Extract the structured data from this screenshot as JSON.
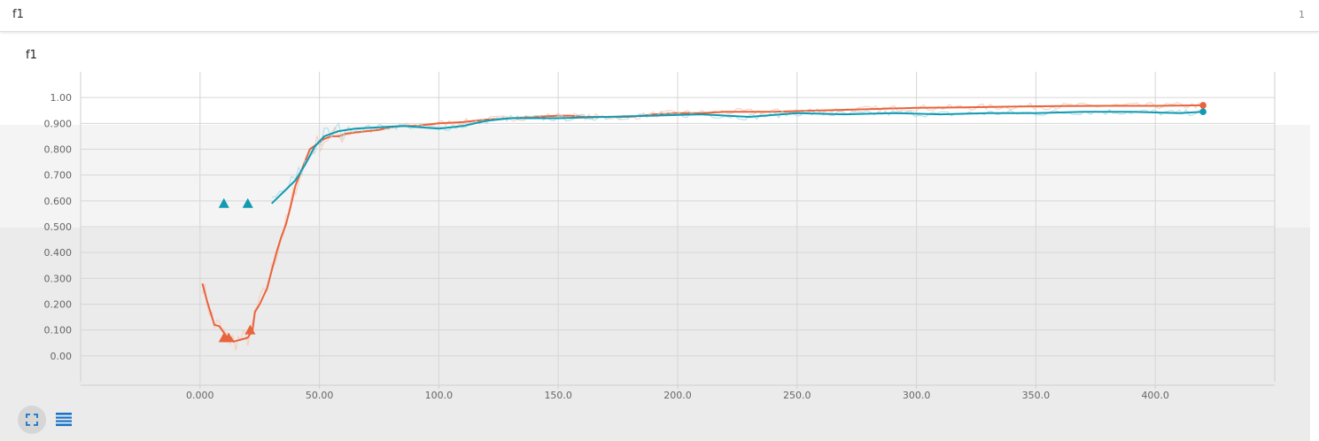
{
  "header": {
    "title": "f1",
    "count": "1"
  },
  "chart_data": {
    "type": "line",
    "title": "f1",
    "xlabel": "",
    "ylabel": "",
    "xlim": [
      -50,
      450
    ],
    "ylim": [
      -0.1,
      1.1
    ],
    "x_ticks": [
      "0.000",
      "50.00",
      "100.0",
      "150.0",
      "200.0",
      "250.0",
      "300.0",
      "350.0",
      "400.0"
    ],
    "y_ticks": [
      "0.00",
      "0.100",
      "0.200",
      "0.300",
      "0.400",
      "0.500",
      "0.600",
      "0.700",
      "0.800",
      "0.900",
      "1.00"
    ],
    "grid": true,
    "legend": "none",
    "series": [
      {
        "color": "#e8643c",
        "raw_color": "#f5c8b8",
        "points": [
          [
            1,
            0.28
          ],
          [
            3,
            0.21
          ],
          [
            5,
            0.15
          ],
          [
            6,
            0.12
          ],
          [
            8,
            0.115
          ],
          [
            10,
            0.09
          ],
          [
            12,
            0.06
          ],
          [
            13,
            0.07
          ],
          [
            14,
            0.055
          ],
          [
            16,
            0.06
          ],
          [
            18,
            0.065
          ],
          [
            20,
            0.07
          ],
          [
            22,
            0.1
          ],
          [
            23,
            0.17
          ],
          [
            25,
            0.2
          ],
          [
            28,
            0.26
          ],
          [
            30,
            0.33
          ],
          [
            32,
            0.4
          ],
          [
            34,
            0.46
          ],
          [
            36,
            0.51
          ],
          [
            38,
            0.58
          ],
          [
            40,
            0.66
          ],
          [
            43,
            0.73
          ],
          [
            46,
            0.8
          ],
          [
            49,
            0.82
          ],
          [
            52,
            0.84
          ],
          [
            55,
            0.85
          ],
          [
            58,
            0.85
          ],
          [
            61,
            0.86
          ],
          [
            65,
            0.865
          ],
          [
            70,
            0.87
          ],
          [
            75,
            0.875
          ],
          [
            80,
            0.885
          ],
          [
            85,
            0.89
          ],
          [
            90,
            0.89
          ],
          [
            95,
            0.895
          ],
          [
            100,
            0.9
          ],
          [
            110,
            0.905
          ],
          [
            120,
            0.915
          ],
          [
            130,
            0.92
          ],
          [
            140,
            0.925
          ],
          [
            150,
            0.93
          ],
          [
            155,
            0.93
          ],
          [
            160,
            0.925
          ],
          [
            170,
            0.925
          ],
          [
            180,
            0.925
          ],
          [
            190,
            0.935
          ],
          [
            200,
            0.94
          ],
          [
            210,
            0.94
          ],
          [
            220,
            0.945
          ],
          [
            240,
            0.945
          ],
          [
            260,
            0.95
          ],
          [
            280,
            0.955
          ],
          [
            300,
            0.96
          ],
          [
            320,
            0.962
          ],
          [
            340,
            0.965
          ],
          [
            360,
            0.967
          ],
          [
            380,
            0.968
          ],
          [
            400,
            0.968
          ],
          [
            420,
            0.97
          ]
        ],
        "markers": [
          [
            10,
            0.07
          ],
          [
            12,
            0.07
          ],
          [
            21,
            0.1
          ]
        ],
        "end": [
          420,
          0.97
        ]
      },
      {
        "color": "#119ab2",
        "raw_color": "#a6dce4",
        "points": [
          [
            30,
            0.59
          ],
          [
            35,
            0.635
          ],
          [
            40,
            0.68
          ],
          [
            44,
            0.74
          ],
          [
            48,
            0.81
          ],
          [
            52,
            0.85
          ],
          [
            58,
            0.87
          ],
          [
            65,
            0.88
          ],
          [
            75,
            0.885
          ],
          [
            85,
            0.89
          ],
          [
            100,
            0.88
          ],
          [
            110,
            0.89
          ],
          [
            120,
            0.91
          ],
          [
            130,
            0.92
          ],
          [
            150,
            0.92
          ],
          [
            170,
            0.925
          ],
          [
            190,
            0.93
          ],
          [
            210,
            0.935
          ],
          [
            230,
            0.925
          ],
          [
            250,
            0.94
          ],
          [
            270,
            0.935
          ],
          [
            290,
            0.94
          ],
          [
            310,
            0.935
          ],
          [
            330,
            0.94
          ],
          [
            350,
            0.94
          ],
          [
            370,
            0.945
          ],
          [
            390,
            0.945
          ],
          [
            410,
            0.94
          ],
          [
            420,
            0.945
          ]
        ],
        "markers": [
          [
            10,
            0.59
          ],
          [
            20,
            0.59
          ]
        ],
        "end": [
          420,
          0.945
        ]
      }
    ]
  }
}
